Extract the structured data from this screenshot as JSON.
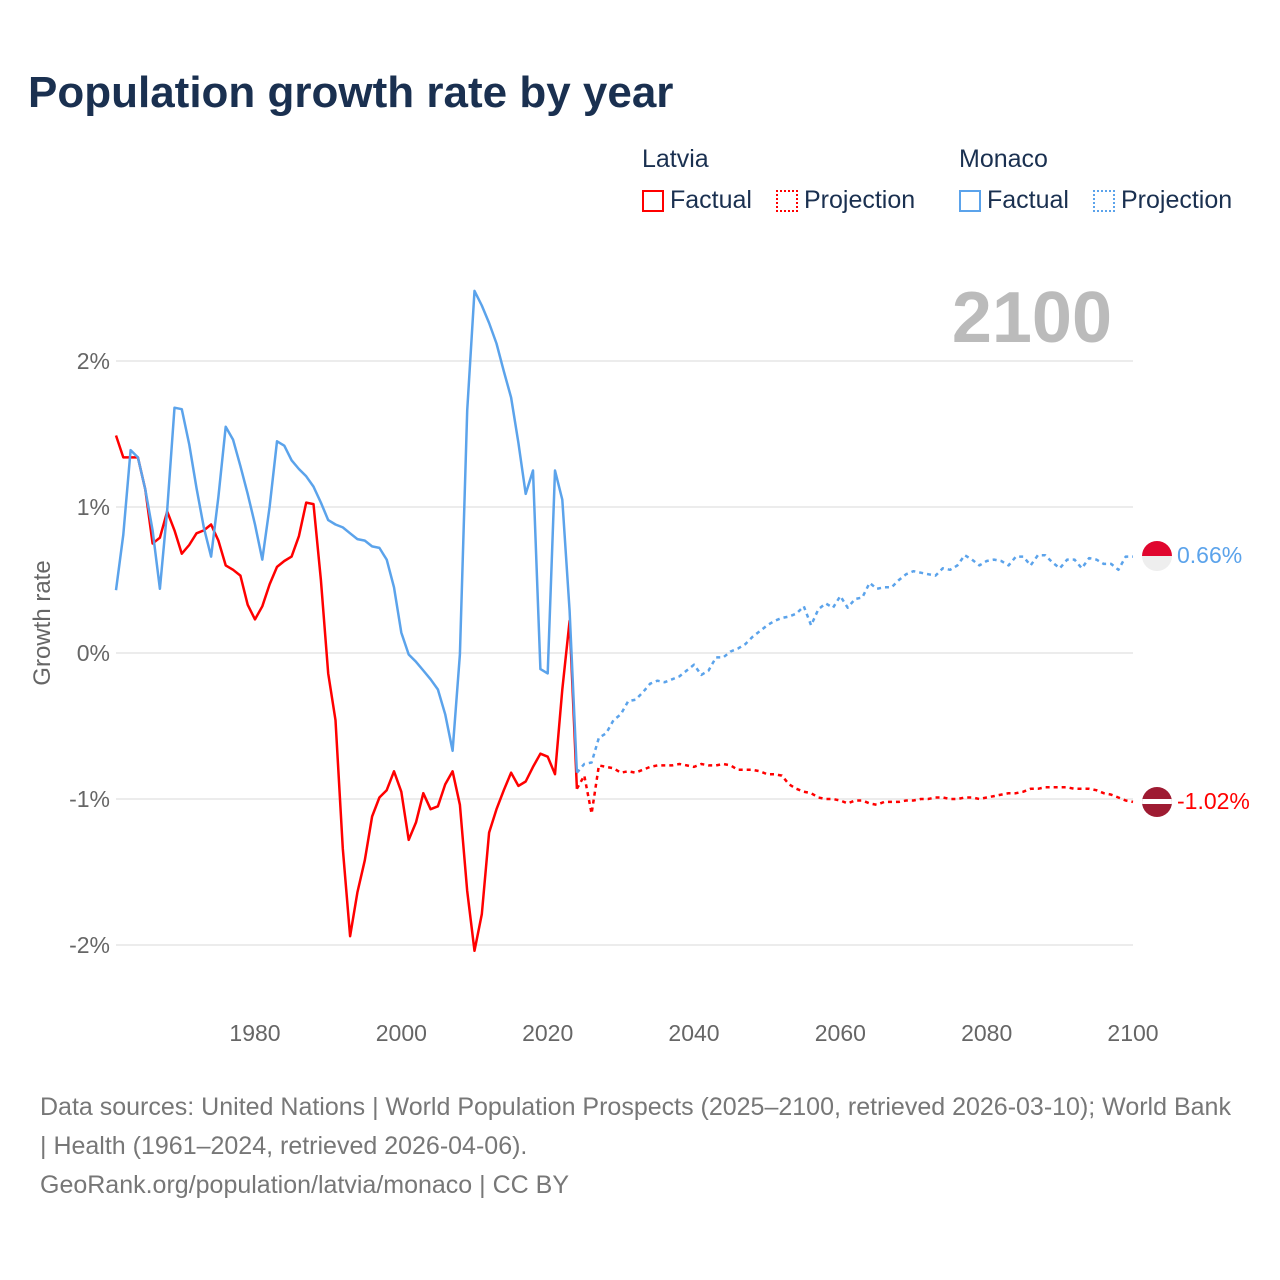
{
  "title": "Population growth rate by year",
  "legend": {
    "groups": [
      {
        "name": "Latvia",
        "color": "#ff0000",
        "items": [
          "Factual",
          "Projection"
        ]
      },
      {
        "name": "Monaco",
        "color": "#5ba3eb",
        "items": [
          "Factual",
          "Projection"
        ]
      }
    ]
  },
  "year_label": "2100",
  "end_labels": {
    "monaco": "0.66%",
    "latvia": "-1.02%"
  },
  "source": {
    "line1": "Data sources: United Nations | World Population Prospects (2025–2100, retrieved 2026-03-10); World Bank | Health (1961–2024, retrieved 2026-04-06).",
    "line2": "GeoRank.org/population/latvia/monaco | CC BY"
  },
  "chart_data": {
    "type": "line",
    "title": "Population growth rate by year",
    "xlabel": "",
    "ylabel": "Growth rate",
    "xlim": [
      1961,
      2100
    ],
    "ylim": [
      -2.45,
      2.6
    ],
    "x_ticks": [
      1980,
      2000,
      2020,
      2040,
      2060,
      2080,
      2100
    ],
    "x_tick_labels": [
      "1980",
      "2000",
      "2020",
      "2040",
      "2060",
      "2080",
      "2100"
    ],
    "y_ticks": [
      2,
      1,
      0,
      -1,
      -2
    ],
    "y_tick_labels": [
      "2%",
      "1%",
      "0%",
      "-1%",
      "-2%"
    ],
    "grid": true,
    "legend_position": "top-right",
    "series": [
      {
        "name": "Latvia Factual",
        "color": "#ff0000",
        "dashed": false,
        "x_start": 1961,
        "values": [
          1.49,
          1.34,
          1.34,
          1.34,
          1.12,
          0.75,
          0.79,
          0.97,
          0.84,
          0.68,
          0.74,
          0.82,
          0.84,
          0.88,
          0.77,
          0.6,
          0.57,
          0.53,
          0.33,
          0.23,
          0.32,
          0.47,
          0.59,
          0.63,
          0.66,
          0.8,
          1.03,
          1.02,
          0.5,
          -0.14,
          -0.46,
          -1.34,
          -1.94,
          -1.64,
          -1.42,
          -1.12,
          -0.99,
          -0.94,
          -0.81,
          -0.95,
          -1.28,
          -1.16,
          -0.96,
          -1.07,
          -1.05,
          -0.9,
          -0.81,
          -1.04,
          -1.63,
          -2.04,
          -1.79,
          -1.23,
          -1.07,
          -0.94,
          -0.82,
          -0.91,
          -0.88,
          -0.78,
          -0.69,
          -0.71,
          -0.83,
          -0.25,
          0.22,
          -0.93
        ]
      },
      {
        "name": "Latvia Projection",
        "color": "#ff0000",
        "dashed": true,
        "x_start": 2024,
        "values": [
          -0.93,
          -0.84,
          -1.1,
          -0.77,
          -0.78,
          -0.79,
          -0.82,
          -0.81,
          -0.82,
          -0.8,
          -0.78,
          -0.77,
          -0.77,
          -0.77,
          -0.76,
          -0.77,
          -0.78,
          -0.76,
          -0.77,
          -0.77,
          -0.76,
          -0.77,
          -0.8,
          -0.8,
          -0.8,
          -0.81,
          -0.83,
          -0.83,
          -0.84,
          -0.9,
          -0.93,
          -0.95,
          -0.96,
          -0.99,
          -1.0,
          -1.0,
          -1.01,
          -1.03,
          -1.01,
          -1.01,
          -1.03,
          -1.04,
          -1.02,
          -1.02,
          -1.02,
          -1.01,
          -1.01,
          -1.0,
          -1.0,
          -0.99,
          -0.99,
          -1.0,
          -1.0,
          -0.99,
          -0.99,
          -1.0,
          -0.99,
          -0.98,
          -0.97,
          -0.96,
          -0.96,
          -0.95,
          -0.93,
          -0.93,
          -0.92,
          -0.92,
          -0.92,
          -0.92,
          -0.93,
          -0.93,
          -0.93,
          -0.94,
          -0.96,
          -0.97,
          -0.99,
          -1.01,
          -1.02
        ]
      },
      {
        "name": "Monaco Factual",
        "color": "#5ba3eb",
        "dashed": false,
        "x_start": 1961,
        "values": [
          0.43,
          0.81,
          1.39,
          1.34,
          1.12,
          0.84,
          0.44,
          0.98,
          1.68,
          1.67,
          1.43,
          1.13,
          0.86,
          0.66,
          1.07,
          1.55,
          1.46,
          1.28,
          1.09,
          0.88,
          0.64,
          1.0,
          1.45,
          1.42,
          1.32,
          1.26,
          1.21,
          1.14,
          1.03,
          0.91,
          0.88,
          0.86,
          0.82,
          0.78,
          0.77,
          0.73,
          0.72,
          0.64,
          0.45,
          0.14,
          -0.01,
          -0.06,
          -0.12,
          -0.18,
          -0.25,
          -0.42,
          -0.67,
          -0.01,
          1.66,
          2.48,
          2.38,
          2.26,
          2.12,
          1.93,
          1.75,
          1.44,
          1.09,
          1.25,
          -0.11,
          -0.14,
          1.25,
          1.05,
          0.29,
          -0.82
        ]
      },
      {
        "name": "Monaco Projection",
        "color": "#5ba3eb",
        "dashed": true,
        "x_start": 2024,
        "values": [
          -0.82,
          -0.76,
          -0.75,
          -0.58,
          -0.55,
          -0.46,
          -0.42,
          -0.33,
          -0.32,
          -0.27,
          -0.21,
          -0.19,
          -0.2,
          -0.18,
          -0.16,
          -0.12,
          -0.08,
          -0.15,
          -0.12,
          -0.03,
          -0.03,
          0.01,
          0.03,
          0.06,
          0.11,
          0.15,
          0.19,
          0.22,
          0.24,
          0.25,
          0.27,
          0.32,
          0.19,
          0.3,
          0.34,
          0.31,
          0.39,
          0.31,
          0.37,
          0.38,
          0.48,
          0.44,
          0.45,
          0.45,
          0.5,
          0.54,
          0.56,
          0.55,
          0.54,
          0.53,
          0.58,
          0.57,
          0.6,
          0.67,
          0.64,
          0.6,
          0.63,
          0.64,
          0.63,
          0.6,
          0.66,
          0.66,
          0.6,
          0.67,
          0.67,
          0.62,
          0.58,
          0.64,
          0.64,
          0.58,
          0.65,
          0.64,
          0.61,
          0.61,
          0.57,
          0.66,
          0.66
        ]
      }
    ]
  }
}
